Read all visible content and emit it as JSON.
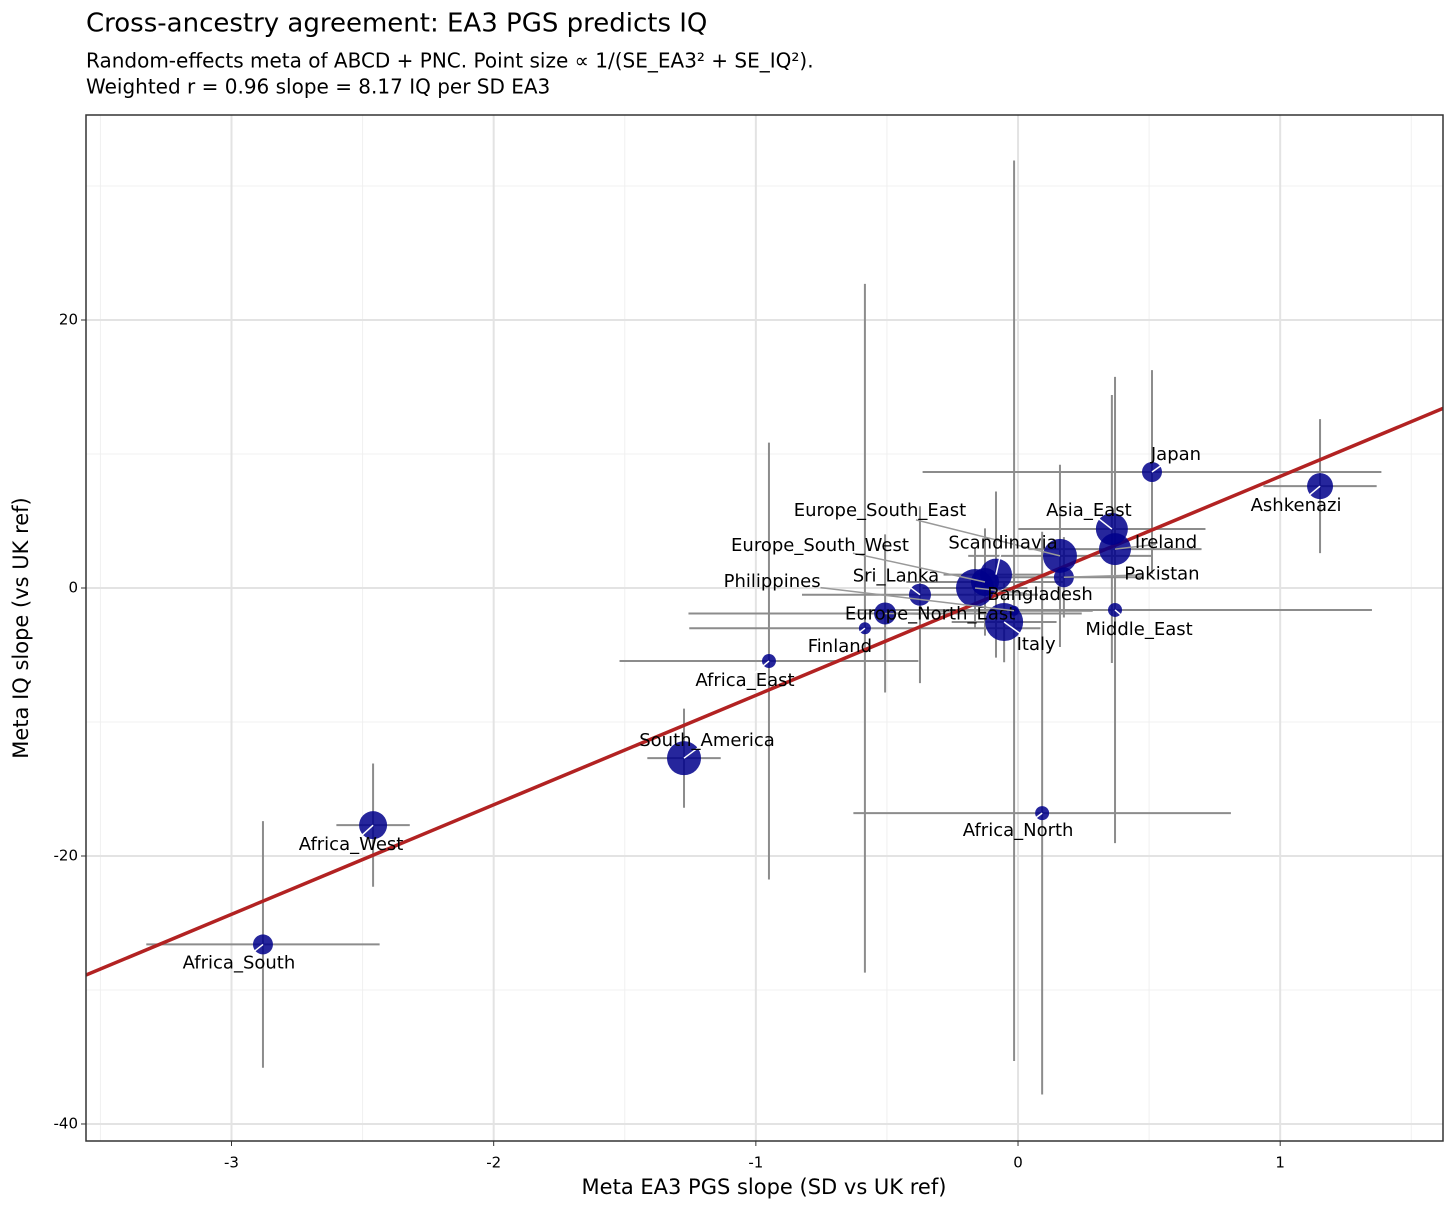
{
  "chart_data": {
    "type": "scatter",
    "title": "Cross-ancestry agreement: EA3 PGS predicts IQ",
    "subtitle": [
      "Random-effects meta of ABCD + PNC.   Point size ∝ 1/(SE_EA3² + SE_IQ²).",
      "Weighted r = 0.96   slope = 8.17 IQ per SD EA3"
    ],
    "xlabel": "Meta EA3 PGS slope (SD vs UK ref)",
    "ylabel": "Meta IQ slope (vs UK ref)",
    "labels": [
      "Japan",
      "Ashkenazi",
      "Asia_East",
      "Ireland",
      "Europe_South_East",
      "Scandinavia",
      "Pakistan",
      "Bangladesh",
      "Sri_Lanka",
      "Europe_North_East",
      "Middle_East",
      "Italy",
      "Finland",
      "Africa_East",
      "South_America",
      "Africa_North",
      "Africa_West",
      "Africa_South",
      "Philippines",
      "Europe_South_West"
    ],
    "x": [
      0.511,
      1.152,
      0.358,
      0.37,
      0.16,
      -0.084,
      0.175,
      -0.164,
      -0.374,
      -0.507,
      0.37,
      -0.053,
      -0.584,
      -0.95,
      -1.274,
      0.092,
      -2.46,
      -2.88,
      -0.015,
      -0.126
    ],
    "y": [
      8.66,
      7.6,
      4.4,
      2.9,
      2.4,
      1.0,
      0.8,
      0.0,
      -0.5,
      -1.9,
      -1.64,
      -2.54,
      -3.0,
      -5.45,
      -12.7,
      -16.8,
      -17.7,
      -26.6,
      -1.7,
      0.45
    ],
    "xerr": [
      0.875,
      0.216,
      0.357,
      0.33,
      0.35,
      0.2,
      0.3,
      0.2,
      0.45,
      0.75,
      0.98,
      0.2,
      0.67,
      0.57,
      0.14,
      0.72,
      0.14,
      0.445,
      0.3,
      0.3
    ],
    "yerr": [
      7.6,
      5.0,
      10.0,
      6.0,
      6.8,
      6.2,
      3.0,
      3.0,
      6.6,
      5.9,
      17.4,
      3.0,
      25.7,
      16.3,
      3.7,
      21.0,
      4.6,
      9.2,
      33.6,
      4.0
    ],
    "sizes": [
      10,
      13,
      16,
      16,
      17,
      16,
      10,
      19,
      11,
      11,
      7,
      19,
      6,
      7,
      17,
      7,
      14,
      10,
      5,
      14
    ],
    "color": "#00008b",
    "errorbar_color": "#8c8c8c",
    "fit": {
      "slope": 8.17,
      "intercept": 0.16,
      "color": "#b22222"
    },
    "xlim": [
      -3.555,
      1.621
    ],
    "xticks": [
      -3,
      -2,
      -1,
      0,
      1
    ],
    "xminor": [
      -3.5,
      -2.5,
      -1.5,
      -0.5,
      0.5,
      1.5
    ],
    "ylim": [
      -41.27,
      35.3
    ],
    "yticks": [
      -40,
      -20,
      0,
      20
    ],
    "yminor": [
      -30,
      -10,
      10,
      30
    ],
    "grid": true
  }
}
